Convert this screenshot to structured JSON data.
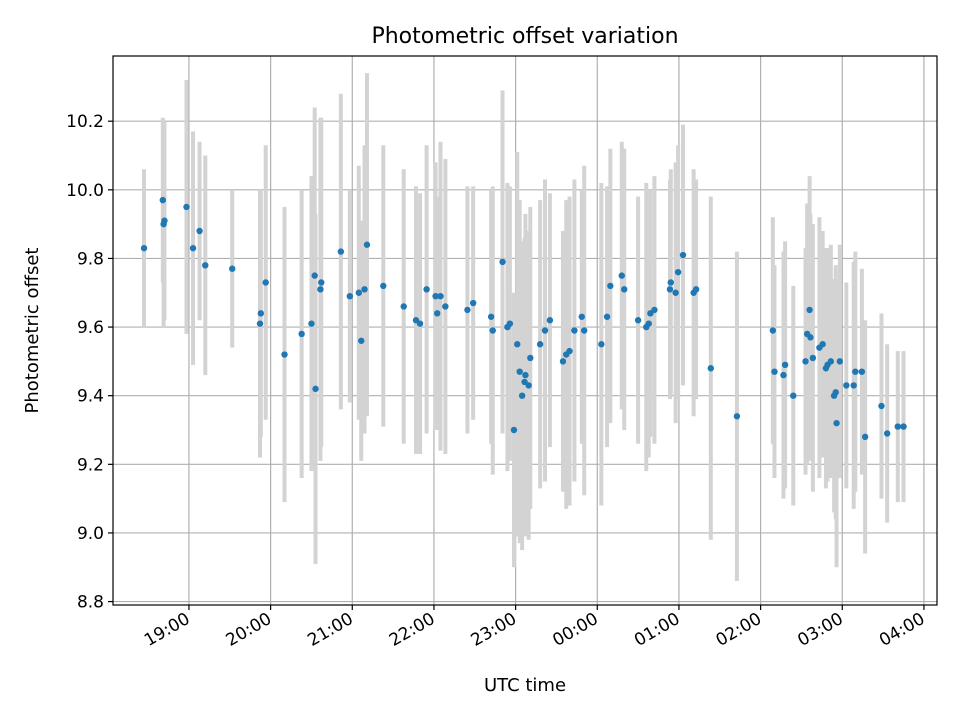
{
  "chart_data": {
    "type": "scatter",
    "title": "Photometric offset variation",
    "xlabel": "UTC time",
    "ylabel": "Photometric offset",
    "grid": true,
    "colors": {
      "points": "#1f77b4",
      "errorbars": "#d3d3d3",
      "grid": "#b0b0b0"
    },
    "x_tick_labels": [
      "19:00",
      "20:00",
      "21:00",
      "22:00",
      "23:00",
      "00:00",
      "01:00",
      "02:00",
      "03:00",
      "04:00"
    ],
    "x_ticks_hours": [
      19,
      20,
      21,
      22,
      23,
      24,
      25,
      26,
      27,
      28
    ],
    "xlim_hours": [
      18.07,
      28.16
    ],
    "y_tick_labels": [
      "8.8",
      "9.0",
      "9.2",
      "9.4",
      "9.6",
      "9.8",
      "10.0",
      "10.2"
    ],
    "y_ticks": [
      8.8,
      9.0,
      9.2,
      9.4,
      9.6,
      9.8,
      10.0,
      10.2
    ],
    "ylim": [
      8.79,
      10.39
    ],
    "series": [
      {
        "x_hours": [
          18.45,
          18.68,
          18.69,
          18.7,
          18.97,
          19.05,
          19.13,
          19.2,
          19.53,
          19.87,
          19.88,
          19.94,
          20.17,
          20.38,
          20.5,
          20.54,
          20.55,
          20.61,
          20.62,
          20.86,
          20.97,
          21.08,
          21.11,
          21.15,
          21.18,
          21.38,
          21.63,
          21.78,
          21.83,
          21.91,
          22.02,
          22.04,
          22.08,
          22.14,
          22.41,
          22.48,
          22.7,
          22.72,
          22.84,
          22.9,
          22.93,
          22.98,
          23.02,
          23.05,
          23.08,
          23.11,
          23.12,
          23.16,
          23.18,
          23.3,
          23.36,
          23.42,
          23.58,
          23.62,
          23.66,
          23.72,
          23.81,
          23.84,
          24.05,
          24.12,
          24.16,
          24.3,
          24.33,
          24.5,
          24.6,
          24.63,
          24.65,
          24.7,
          24.89,
          24.9,
          24.96,
          24.99,
          25.05,
          25.18,
          25.21,
          25.39,
          25.71,
          26.15,
          26.17,
          26.28,
          26.3,
          26.4,
          26.55,
          26.57,
          26.6,
          26.61,
          26.64,
          26.72,
          26.76,
          26.8,
          26.82,
          26.86,
          26.9,
          26.92,
          26.93,
          26.97,
          27.05,
          27.14,
          27.16,
          27.24,
          27.28,
          27.48,
          27.55,
          27.68,
          27.75
        ],
        "y": [
          9.83,
          9.97,
          9.9,
          9.91,
          9.95,
          9.83,
          9.88,
          9.78,
          9.77,
          9.61,
          9.64,
          9.73,
          9.52,
          9.58,
          9.61,
          9.75,
          9.42,
          9.71,
          9.73,
          9.82,
          9.69,
          9.7,
          9.56,
          9.71,
          9.84,
          9.72,
          9.66,
          9.62,
          9.61,
          9.71,
          9.69,
          9.64,
          9.69,
          9.66,
          9.65,
          9.67,
          9.63,
          9.59,
          9.79,
          9.6,
          9.61,
          9.3,
          9.55,
          9.47,
          9.4,
          9.44,
          9.46,
          9.43,
          9.51,
          9.55,
          9.59,
          9.62,
          9.5,
          9.52,
          9.53,
          9.59,
          9.63,
          9.59,
          9.55,
          9.63,
          9.72,
          9.75,
          9.71,
          9.62,
          9.6,
          9.61,
          9.64,
          9.65,
          9.71,
          9.73,
          9.7,
          9.76,
          9.81,
          9.7,
          9.71,
          9.48,
          9.34,
          9.59,
          9.47,
          9.46,
          9.49,
          9.4,
          9.5,
          9.58,
          9.65,
          9.57,
          9.51,
          9.54,
          9.55,
          9.48,
          9.49,
          9.5,
          9.4,
          9.41,
          9.32,
          9.5,
          9.43,
          9.43,
          9.47,
          9.47,
          9.28,
          9.37,
          9.29,
          9.31,
          9.31
        ],
        "err": [
          0.23,
          0.24,
          0.3,
          0.29,
          0.37,
          0.34,
          0.26,
          0.32,
          0.23,
          0.39,
          0.36,
          0.4,
          0.43,
          0.42,
          0.43,
          0.49,
          0.51,
          0.5,
          0.48,
          0.46,
          0.31,
          0.37,
          0.35,
          0.42,
          0.5,
          0.41,
          0.4,
          0.39,
          0.38,
          0.42,
          0.39,
          0.34,
          0.45,
          0.43,
          0.36,
          0.34,
          0.37,
          0.42,
          0.5,
          0.42,
          0.4,
          0.4,
          0.56,
          0.5,
          0.45,
          0.42,
          0.47,
          0.45,
          0.44,
          0.42,
          0.44,
          0.37,
          0.38,
          0.45,
          0.45,
          0.44,
          0.37,
          0.48,
          0.47,
          0.38,
          0.4,
          0.39,
          0.41,
          0.36,
          0.42,
          0.39,
          0.36,
          0.39,
          0.32,
          0.33,
          0.38,
          0.37,
          0.38,
          0.36,
          0.32,
          0.5,
          0.48,
          0.33,
          0.31,
          0.36,
          0.36,
          0.32,
          0.33,
          0.38,
          0.39,
          0.36,
          0.39,
          0.38,
          0.33,
          0.35,
          0.34,
          0.34,
          0.34,
          0.37,
          0.42,
          0.34,
          0.3,
          0.36,
          0.35,
          0.3,
          0.34,
          0.27,
          0.26,
          0.22,
          0.22
        ]
      }
    ]
  }
}
